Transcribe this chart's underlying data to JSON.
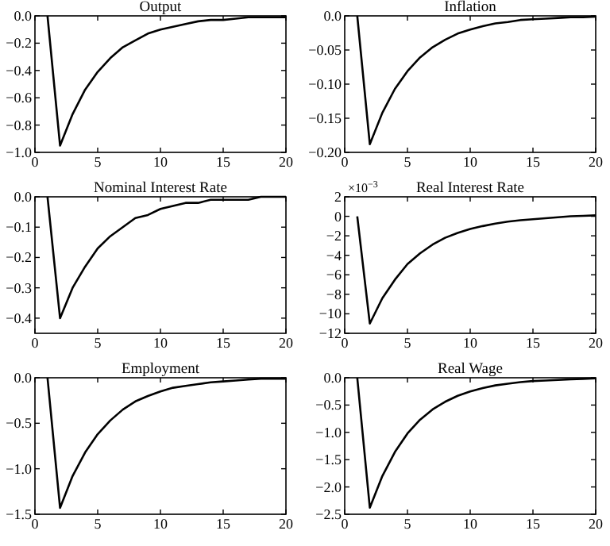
{
  "chart_data": [
    {
      "type": "line",
      "title": "Output",
      "x": [
        1,
        2,
        3,
        4,
        5,
        6,
        7,
        8,
        9,
        10,
        11,
        12,
        13,
        14,
        15,
        16,
        17,
        18,
        19,
        20
      ],
      "values": [
        0,
        -0.95,
        -0.72,
        -0.54,
        -0.41,
        -0.31,
        -0.23,
        -0.18,
        -0.13,
        -0.1,
        -0.08,
        -0.06,
        -0.04,
        -0.03,
        -0.03,
        -0.02,
        -0.01,
        -0.01,
        -0.01,
        -0.01
      ],
      "color": "#000000",
      "xlim": [
        0,
        20
      ],
      "xticks": [
        0,
        5,
        10,
        15,
        20
      ],
      "ylim": [
        -1,
        0
      ],
      "yticks": [
        {
          "value": -1,
          "label": "−1.0"
        },
        {
          "value": -0.8,
          "label": "−0.8"
        },
        {
          "value": -0.6,
          "label": "−0.6"
        },
        {
          "value": -0.4,
          "label": "−0.4"
        },
        {
          "value": -0.2,
          "label": "−0.2"
        },
        {
          "value": 0,
          "label": "0.0"
        }
      ]
    },
    {
      "type": "line",
      "title": "Inflation",
      "x": [
        1,
        2,
        3,
        4,
        5,
        6,
        7,
        8,
        9,
        10,
        11,
        12,
        13,
        14,
        15,
        16,
        17,
        18,
        19,
        20
      ],
      "values": [
        0,
        -0.188,
        -0.142,
        -0.107,
        -0.081,
        -0.061,
        -0.046,
        -0.035,
        -0.026,
        -0.02,
        -0.015,
        -0.011,
        -0.009,
        -0.006,
        -0.005,
        -0.004,
        -0.003,
        -0.002,
        -0.002,
        -0.001
      ],
      "color": "#000000",
      "xlim": [
        0,
        20
      ],
      "xticks": [
        0,
        5,
        10,
        15,
        20
      ],
      "ylim": [
        -0.2,
        0
      ],
      "yticks": [
        {
          "value": -0.2,
          "label": "−0.20"
        },
        {
          "value": -0.15,
          "label": "−0.15"
        },
        {
          "value": -0.1,
          "label": "−0.10"
        },
        {
          "value": -0.05,
          "label": "−0.05"
        },
        {
          "value": 0,
          "label": "0.0"
        }
      ]
    },
    {
      "type": "line",
      "title": "Nominal Interest Rate",
      "x": [
        1,
        2,
        3,
        4,
        5,
        6,
        7,
        8,
        9,
        10,
        11,
        12,
        13,
        14,
        15,
        16,
        17,
        18,
        19,
        20
      ],
      "values": [
        0,
        -0.4,
        -0.3,
        -0.23,
        -0.17,
        -0.13,
        -0.1,
        -0.07,
        -0.06,
        -0.04,
        -0.03,
        -0.02,
        -0.02,
        -0.01,
        -0.01,
        -0.01,
        -0.01,
        0,
        0,
        0
      ],
      "color": "#000000",
      "xlim": [
        0,
        20
      ],
      "xticks": [
        0,
        5,
        10,
        15,
        20
      ],
      "ylim": [
        -0.45,
        0
      ],
      "yticks": [
        {
          "value": -0.4,
          "label": "−0.4"
        },
        {
          "value": -0.3,
          "label": "−0.3"
        },
        {
          "value": -0.2,
          "label": "−0.2"
        },
        {
          "value": -0.1,
          "label": "−0.1"
        },
        {
          "value": 0,
          "label": "0.0"
        }
      ]
    },
    {
      "type": "line",
      "title": "Real Interest Rate",
      "annotations": [
        "×10$^{−3}$"
      ],
      "x": [
        1,
        2,
        3,
        4,
        5,
        6,
        7,
        8,
        9,
        10,
        11,
        12,
        13,
        14,
        15,
        16,
        17,
        18,
        19,
        20
      ],
      "values": [
        0,
        -11,
        -8.4,
        -6.5,
        -4.9,
        -3.8,
        -2.9,
        -2.2,
        -1.7,
        -1.3,
        -1,
        -0.75,
        -0.55,
        -0.4,
        -0.3,
        -0.2,
        -0.1,
        0,
        0.05,
        0.1
      ],
      "color": "#000000",
      "xlim": [
        0,
        20
      ],
      "xticks": [
        0,
        5,
        10,
        15,
        20
      ],
      "ylim": [
        -12,
        2
      ],
      "yticks": [
        {
          "value": -12,
          "label": "−12"
        },
        {
          "value": -10,
          "label": "−10"
        },
        {
          "value": -8,
          "label": "−8"
        },
        {
          "value": -6,
          "label": "−6"
        },
        {
          "value": -4,
          "label": "−4"
        },
        {
          "value": -2,
          "label": "−2"
        },
        0,
        2
      ]
    },
    {
      "type": "line",
      "title": "Employment",
      "x": [
        1,
        2,
        3,
        4,
        5,
        6,
        7,
        8,
        9,
        10,
        11,
        12,
        13,
        14,
        15,
        16,
        17,
        18,
        19,
        20
      ],
      "values": [
        0,
        -1.43,
        -1.08,
        -0.82,
        -0.62,
        -0.47,
        -0.35,
        -0.26,
        -0.2,
        -0.15,
        -0.11,
        -0.09,
        -0.07,
        -0.05,
        -0.04,
        -0.03,
        -0.02,
        -0.01,
        -0.01,
        -0.01
      ],
      "color": "#000000",
      "xlim": [
        0,
        20
      ],
      "xticks": [
        0,
        5,
        10,
        15,
        20
      ],
      "ylim": [
        -1.5,
        0
      ],
      "yticks": [
        {
          "value": -1.5,
          "label": "−1.5"
        },
        {
          "value": -1,
          "label": "−1.0"
        },
        {
          "value": -0.5,
          "label": "−0.5"
        },
        {
          "value": 0,
          "label": "0.0"
        }
      ]
    },
    {
      "type": "line",
      "title": "Real Wage",
      "x": [
        1,
        2,
        3,
        4,
        5,
        6,
        7,
        8,
        9,
        10,
        11,
        12,
        13,
        14,
        15,
        16,
        17,
        18,
        19,
        20
      ],
      "values": [
        0,
        -2.38,
        -1.8,
        -1.36,
        -1.02,
        -0.77,
        -0.58,
        -0.44,
        -0.33,
        -0.25,
        -0.19,
        -0.14,
        -0.11,
        -0.08,
        -0.06,
        -0.05,
        -0.04,
        -0.03,
        -0.02,
        -0.01
      ],
      "color": "#000000",
      "xlim": [
        0,
        20
      ],
      "xticks": [
        0,
        5,
        10,
        15,
        20
      ],
      "ylim": [
        -2.5,
        0
      ],
      "yticks": [
        {
          "value": -2.5,
          "label": "−2.5"
        },
        {
          "value": -2,
          "label": "−2.0"
        },
        {
          "value": -1.5,
          "label": "−1.5"
        },
        {
          "value": -1,
          "label": "−1.0"
        },
        {
          "value": -0.5,
          "label": "−0.5"
        },
        {
          "value": 0,
          "label": "0.0"
        }
      ]
    }
  ]
}
